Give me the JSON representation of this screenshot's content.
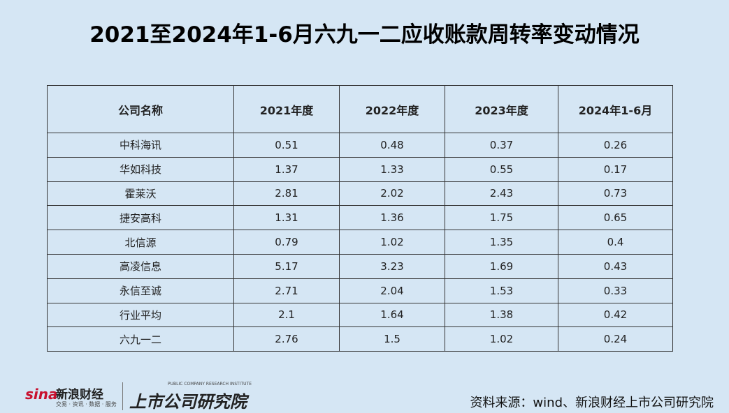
{
  "header": {
    "title": "2021至2024年1-6月六九一二应收账款周转率变动情况"
  },
  "table": {
    "columns": [
      "公司名称",
      "2021年度",
      "2022年度",
      "2023年度",
      "2024年1-6月"
    ],
    "rows": [
      [
        "中科海讯",
        "0.51",
        "0.48",
        "0.37",
        "0.26"
      ],
      [
        "华如科技",
        "1.37",
        "1.33",
        "0.55",
        "0.17"
      ],
      [
        "霍莱沃",
        "2.81",
        "2.02",
        "2.43",
        "0.73"
      ],
      [
        "捷安高科",
        "1.31",
        "1.36",
        "1.75",
        "0.65"
      ],
      [
        "北信源",
        "0.79",
        "1.02",
        "1.35",
        "0.4"
      ],
      [
        "高凌信息",
        "5.17",
        "3.23",
        "1.69",
        "0.43"
      ],
      [
        "永信至诚",
        "2.71",
        "2.04",
        "1.53",
        "0.33"
      ],
      [
        "行业平均",
        "2.1",
        "1.64",
        "1.38",
        "0.42"
      ],
      [
        "六九一二",
        "2.76",
        "1.5",
        "1.02",
        "0.24"
      ]
    ]
  },
  "footer": {
    "logo_sina": "sina",
    "logo_name": "新浪财经",
    "logo_tagline": "交易 · 资讯 · 数据 · 服务",
    "institute": "上市公司研究院",
    "institute_en": "PUBLIC COMPANY RESEARCH INSTITUTE",
    "source": "资料来源：wind、新浪财经上市公司研究院"
  }
}
